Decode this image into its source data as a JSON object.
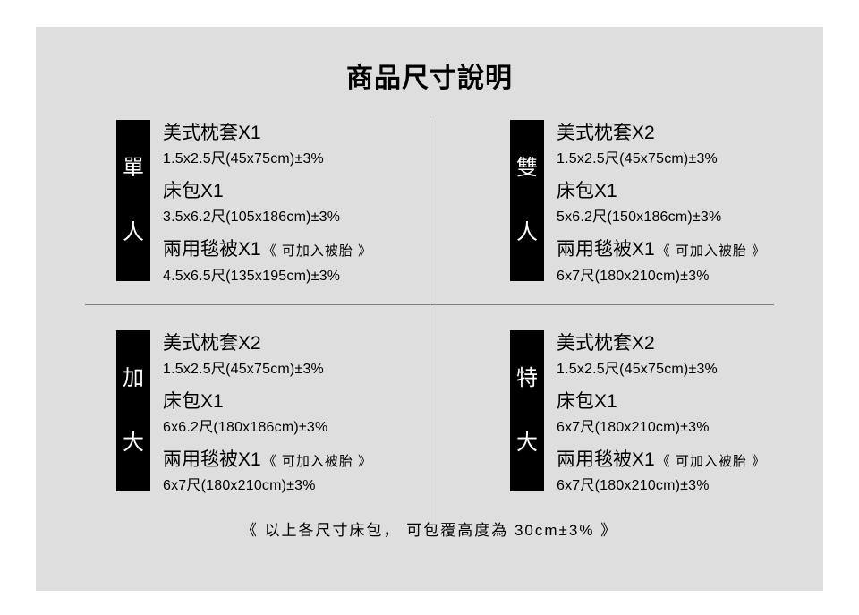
{
  "title": "商品尺寸說明",
  "colors": {
    "page_bg": "#ffffff",
    "panel_bg": "#dedede",
    "badge_bg": "#000000",
    "badge_fg": "#ffffff",
    "text": "#000000",
    "divider": "#808080"
  },
  "sizes": [
    {
      "badge_c1": "單",
      "badge_c2": "人",
      "pillow_title": "美式枕套X1",
      "pillow_dim": "1.5x2.5尺(45x75cm)±3%",
      "sheet_title": "床包X1",
      "sheet_dim": "3.5x6.2尺(105x186cm)±3%",
      "blanket_title": "兩用毯被X1",
      "blanket_note": "《 可加入被胎 》",
      "blanket_dim": "4.5x6.5尺(135x195cm)±3%"
    },
    {
      "badge_c1": "雙",
      "badge_c2": "人",
      "pillow_title": "美式枕套X2",
      "pillow_dim": "1.5x2.5尺(45x75cm)±3%",
      "sheet_title": "床包X1",
      "sheet_dim": "5x6.2尺(150x186cm)±3%",
      "blanket_title": "兩用毯被X1",
      "blanket_note": "《 可加入被胎 》",
      "blanket_dim": "6x7尺(180x210cm)±3%"
    },
    {
      "badge_c1": "加",
      "badge_c2": "大",
      "pillow_title": "美式枕套X2",
      "pillow_dim": "1.5x2.5尺(45x75cm)±3%",
      "sheet_title": "床包X1",
      "sheet_dim": "6x6.2尺(180x186cm)±3%",
      "blanket_title": "兩用毯被X1",
      "blanket_note": "《 可加入被胎 》",
      "blanket_dim": "6x7尺(180x210cm)±3%"
    },
    {
      "badge_c1": "特",
      "badge_c2": "大",
      "pillow_title": "美式枕套X2",
      "pillow_dim": "1.5x2.5尺(45x75cm)±3%",
      "sheet_title": "床包X1",
      "sheet_dim": "6x7尺(180x210cm)±3%",
      "blanket_title": "兩用毯被X1",
      "blanket_note": "《 可加入被胎 》",
      "blanket_dim": "6x7尺(180x210cm)±3%"
    }
  ],
  "footer": "《 以上各尺寸床包， 可包覆高度為 30cm±3% 》"
}
